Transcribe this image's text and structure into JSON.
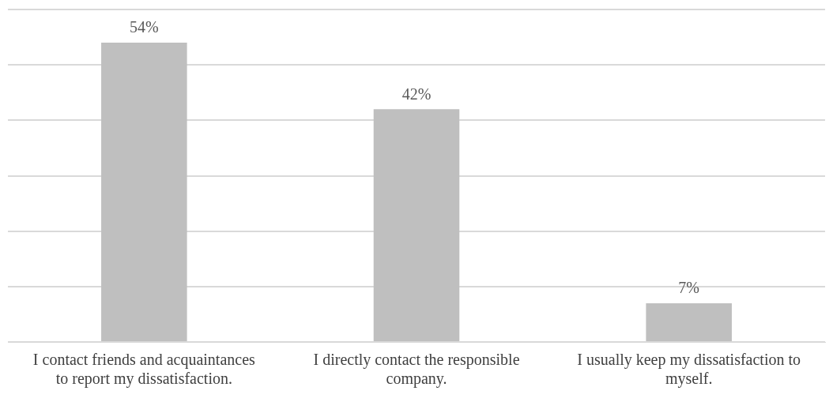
{
  "chart_data": {
    "type": "bar",
    "categories": [
      "I contact friends and acquaintances to report my dissatisfaction.",
      "I directly contact the responsible company.",
      "I usually keep my dissatisfaction to myself."
    ],
    "values": [
      54,
      42,
      7
    ],
    "value_labels": [
      "54%",
      "42%",
      "7%"
    ],
    "color": "#bfbfbf",
    "ylim": [
      0,
      60
    ],
    "yticks": [
      {
        "value": 0,
        "label": null
      },
      {
        "value": 10,
        "label": null
      },
      {
        "value": 20,
        "label": null
      },
      {
        "value": 30,
        "label": null
      },
      {
        "value": 40,
        "label": null
      },
      {
        "value": 50,
        "label": null
      },
      {
        "value": 60,
        "label": null
      }
    ],
    "grid": "y",
    "legend": false,
    "tick_labels": "x"
  }
}
